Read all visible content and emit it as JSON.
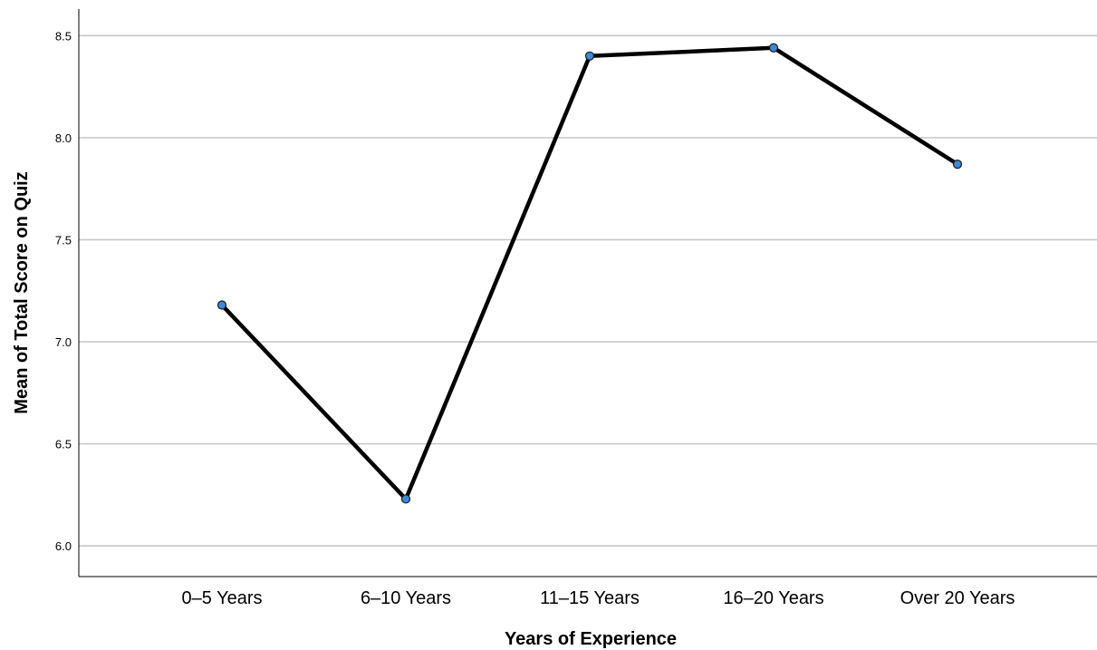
{
  "chart_data": {
    "type": "line",
    "title": "",
    "xlabel": "Years of Experience",
    "ylabel": "Mean of Total Score on Quiz",
    "categories": [
      "0–5 Years",
      "6–10 Years",
      "11–15 Years",
      "16–20 Years",
      "Over 20 Years"
    ],
    "series": [
      {
        "values": [
          7.18,
          6.23,
          8.4,
          8.44,
          7.87
        ]
      }
    ],
    "ylim": [
      5.85,
      8.63
    ],
    "yticks": [
      "6.0",
      "6.5",
      "7.0",
      "7.5",
      "8.0",
      "8.5"
    ],
    "grid": true,
    "legend": "none",
    "colors": {
      "line": "#000000",
      "marker": "#3b8ad9",
      "marker_edge": "#1a1a1a",
      "grid": "#c8c8c8"
    }
  }
}
